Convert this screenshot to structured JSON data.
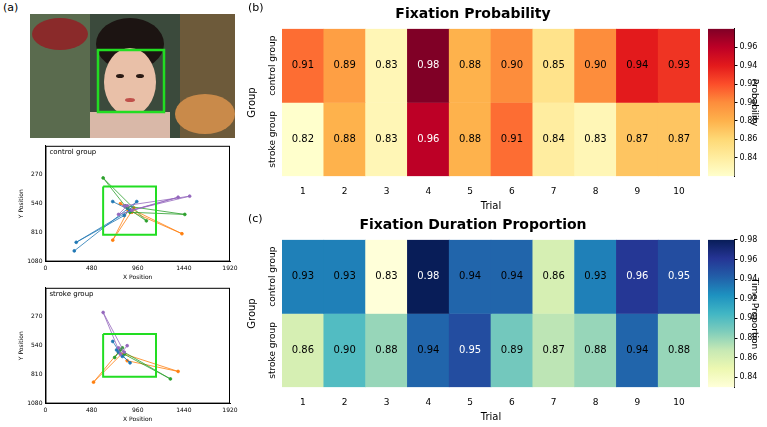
{
  "chart_data": [
    {
      "type": "scatter",
      "panel": "(a)",
      "title": "control group",
      "x_label": "X Position",
      "y_label": "Y Position",
      "xlim": [
        0,
        1920
      ],
      "xticks": [
        0,
        480,
        960,
        1440,
        1920
      ],
      "ylim": [
        1080,
        0
      ],
      "yticks": [
        270,
        540,
        810,
        1080
      ],
      "grid": false,
      "marker": "circle",
      "line_style": "solid",
      "aoi": {
        "x": [
          600,
          1150
        ],
        "y": [
          380,
          830
        ],
        "color": "#22dd22"
      },
      "series": [
        {
          "color": "#9467bd",
          "x": [
            820,
            1500,
            900,
            1380,
            760,
            850
          ],
          "y": [
            560,
            470,
            600,
            480,
            640,
            560
          ]
        },
        {
          "color": "#1f77b4",
          "x": [
            700,
            880,
            320,
            820,
            950,
            300
          ],
          "y": [
            520,
            600,
            900,
            650,
            520,
            980
          ]
        },
        {
          "color": "#2ca02c",
          "x": [
            850,
            1050,
            600,
            880,
            1450,
            830
          ],
          "y": [
            580,
            700,
            300,
            620,
            640,
            560
          ]
        },
        {
          "color": "#ff7f0e",
          "x": [
            900,
            780,
            1420,
            860,
            700,
            920
          ],
          "y": [
            620,
            540,
            820,
            600,
            880,
            580
          ]
        }
      ]
    },
    {
      "type": "scatter",
      "title": "stroke group",
      "x_label": "X Position",
      "y_label": "Y Position",
      "xlim": [
        0,
        1920
      ],
      "xticks": [
        0,
        480,
        960,
        1440,
        1920
      ],
      "ylim": [
        1080,
        0
      ],
      "yticks": [
        270,
        540,
        810,
        1080
      ],
      "grid": false,
      "marker": "circle",
      "line_style": "solid",
      "aoi": {
        "x": [
          600,
          1150
        ],
        "y": [
          430,
          830
        ],
        "color": "#22dd22"
      },
      "series": [
        {
          "color": "#9467bd",
          "x": [
            760,
            820,
            600,
            780,
            850
          ],
          "y": [
            560,
            600,
            230,
            620,
            540
          ]
        },
        {
          "color": "#1f77b4",
          "x": [
            700,
            800,
            740,
            880,
            760
          ],
          "y": [
            500,
            640,
            580,
            700,
            600
          ]
        },
        {
          "color": "#2ca02c",
          "x": [
            820,
            1300,
            780,
            720,
            800
          ],
          "y": [
            620,
            850,
            580,
            650,
            560
          ]
        },
        {
          "color": "#ff7f0e",
          "x": [
            850,
            1380,
            760,
            500,
            790
          ],
          "y": [
            680,
            780,
            600,
            880,
            620
          ]
        }
      ]
    },
    {
      "type": "heatmap",
      "panel": "(b)",
      "title": "Fixation Probability",
      "x_label": "Trial",
      "y_label": "Group",
      "categories": [
        "1",
        "2",
        "3",
        "4",
        "5",
        "6",
        "7",
        "8",
        "9",
        "10"
      ],
      "groups": [
        "control group",
        "stroke group"
      ],
      "values": [
        [
          0.91,
          0.89,
          0.83,
          0.98,
          0.88,
          0.9,
          0.85,
          0.9,
          0.94,
          0.93
        ],
        [
          0.82,
          0.88,
          0.83,
          0.96,
          0.88,
          0.91,
          0.84,
          0.83,
          0.87,
          0.87
        ]
      ],
      "value_labels": [
        [
          "0.91",
          "0.89",
          "0.83",
          "0.98",
          "0.88",
          "0.90",
          "0.85",
          "0.90",
          "0.94",
          "0.93"
        ],
        [
          "0.82",
          "0.88",
          "0.83",
          "0.96",
          "0.88",
          "0.91",
          "0.84",
          "0.83",
          "0.87",
          "0.87"
        ]
      ],
      "data_labels": true,
      "color": [
        "#ffffcc",
        "#ffeda0",
        "#fed976",
        "#feb24c",
        "#fd8d3c",
        "#fc4e2a",
        "#e31a1c",
        "#bd0026",
        "#800026"
      ],
      "colorbar": {
        "title": "Probability",
        "lim": [
          0.82,
          0.98
        ],
        "ticks": [
          0.84,
          0.86,
          0.88,
          {
            "value": 0.9,
            "label": "0.90"
          },
          0.92,
          0.94,
          0.96
        ]
      }
    },
    {
      "type": "heatmap",
      "panel": "(c)",
      "title": "Fixation Duration Proportion",
      "x_label": "Trial",
      "y_label": "Group",
      "categories": [
        "1",
        "2",
        "3",
        "4",
        "5",
        "6",
        "7",
        "8",
        "9",
        "10"
      ],
      "groups": [
        "control group",
        "stroke group"
      ],
      "values": [
        [
          0.93,
          0.93,
          0.83,
          0.98,
          0.94,
          0.94,
          0.86,
          0.93,
          0.96,
          0.95
        ],
        [
          0.86,
          0.9,
          0.88,
          0.94,
          0.95,
          0.89,
          0.87,
          0.88,
          0.94,
          0.88
        ]
      ],
      "value_labels": [
        [
          "0.93",
          "0.93",
          "0.83",
          "0.98",
          "0.94",
          "0.94",
          "0.86",
          "0.93",
          "0.96",
          "0.95"
        ],
        [
          "0.86",
          "0.90",
          "0.88",
          "0.94",
          "0.95",
          "0.89",
          "0.87",
          "0.88",
          "0.94",
          "0.88"
        ]
      ],
      "data_labels": true,
      "color": [
        "#ffffd9",
        "#edf8b1",
        "#c7e9b4",
        "#7fcdbb",
        "#41b6c4",
        "#1d91c0",
        "#225ea8",
        "#253494",
        "#081d58"
      ],
      "colorbar": {
        "title": "Time Proportion",
        "lim": [
          0.83,
          0.98
        ],
        "ticks": [
          0.84,
          0.86,
          0.88,
          {
            "value": 0.9,
            "label": "0.90"
          },
          0.92,
          0.94,
          0.96,
          0.98
        ]
      }
    }
  ]
}
